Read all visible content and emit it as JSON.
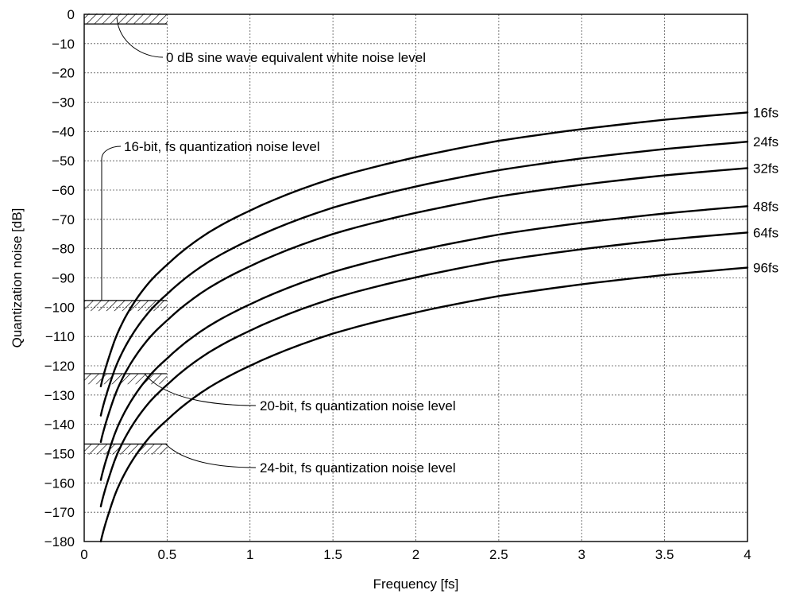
{
  "chart_data": {
    "type": "line",
    "xlabel": "Frequency [fs]",
    "ylabel": "Quantization noise [dB]",
    "xlim": [
      0,
      4
    ],
    "ylim": [
      -180,
      0
    ],
    "x_ticks": [
      "0",
      "0.5",
      "1",
      "1.5",
      "2",
      "2.5",
      "3",
      "3.5",
      "4"
    ],
    "y_ticks": [
      "0",
      "−10",
      "−20",
      "−30",
      "−40",
      "−50",
      "−60",
      "−70",
      "−80",
      "−90",
      "−100",
      "−110",
      "−120",
      "−130",
      "−140",
      "−150",
      "−160",
      "−170",
      "−180"
    ],
    "grid": true,
    "x": [
      0.1,
      0.15,
      0.2,
      0.3,
      0.4,
      0.5,
      0.75,
      1,
      1.5,
      2,
      2.5,
      3,
      3.5,
      4
    ],
    "series": [
      {
        "name": "16fs",
        "values": [
          -127,
          -117,
          -109,
          -98.5,
          -91,
          -85.5,
          -74.5,
          -67,
          -56,
          -48.8,
          -43.2,
          -39.2,
          -36,
          -33.5
        ]
      },
      {
        "name": "24fs",
        "values": [
          -137,
          -127,
          -119,
          -108.5,
          -101,
          -95.5,
          -84.5,
          -77,
          -66,
          -58.8,
          -53.2,
          -49.2,
          -46,
          -43.5
        ]
      },
      {
        "name": "32fs",
        "values": [
          -146,
          -136,
          -128,
          -117.5,
          -110,
          -104.5,
          -93.5,
          -86,
          -75,
          -67.8,
          -62.2,
          -58.2,
          -55,
          -52.5
        ]
      },
      {
        "name": "48fs",
        "values": [
          -159,
          -149,
          -141,
          -130.5,
          -123,
          -117.5,
          -106.5,
          -99,
          -88,
          -80.8,
          -75.2,
          -71.2,
          -68,
          -65.5
        ]
      },
      {
        "name": "64fs",
        "values": [
          -168,
          -158,
          -150,
          -139.5,
          -132,
          -126.5,
          -115.5,
          -108,
          -97,
          -89.8,
          -84.2,
          -80.2,
          -77,
          -74.5
        ]
      },
      {
        "name": "96fs",
        "values": [
          -180,
          -170,
          -162,
          -151.5,
          -144,
          -138.5,
          -127.5,
          -120,
          -109,
          -101.8,
          -96.2,
          -92.2,
          -89,
          -86.5
        ]
      }
    ],
    "reference_levels": [
      {
        "label": "0 dB sine wave equivalent white noise level",
        "value": -1.5,
        "x_range": [
          0,
          0.5
        ]
      },
      {
        "label": "16-bit, fs quantization noise level",
        "value": -99.5,
        "x_range": [
          0,
          0.5
        ]
      },
      {
        "label": "20-bit, fs quantization noise level",
        "value": -124.5,
        "x_range": [
          0,
          0.5
        ]
      },
      {
        "label": "24-bit, fs quantization noise level",
        "value": -148.5,
        "x_range": [
          0,
          0.5
        ]
      }
    ]
  }
}
